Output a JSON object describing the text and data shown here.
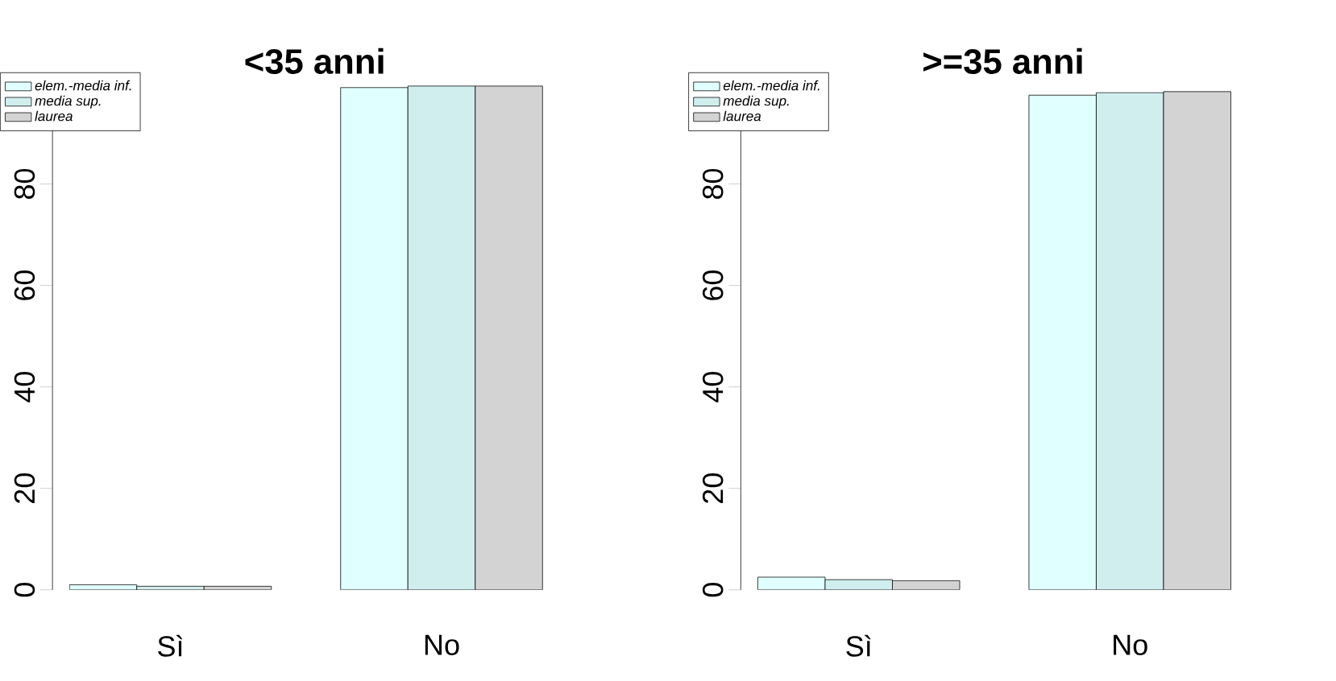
{
  "chart_data": [
    {
      "type": "bar",
      "title": "<35 anni",
      "categories": [
        "Sì",
        "No"
      ],
      "series": [
        {
          "name": "elem.-media inf.",
          "color": "#e0ffff",
          "values": [
            1.0,
            99.0
          ]
        },
        {
          "name": "media sup.",
          "color": "#d1eeee",
          "values": [
            0.7,
            99.3
          ]
        },
        {
          "name": "laurea",
          "color": "#d3d3d3",
          "values": [
            0.7,
            99.3
          ]
        }
      ],
      "ylim": [
        0,
        100
      ],
      "yticks": [
        0,
        20,
        40,
        60,
        80
      ],
      "legend": "top left"
    },
    {
      "type": "bar",
      "title": ">=35 anni",
      "categories": [
        "Sì",
        "No"
      ],
      "series": [
        {
          "name": "elem.-media inf.",
          "color": "#e0ffff",
          "values": [
            2.5,
            97.5
          ]
        },
        {
          "name": "media sup.",
          "color": "#d1eeee",
          "values": [
            2.0,
            98.0
          ]
        },
        {
          "name": "laurea",
          "color": "#d3d3d3",
          "values": [
            1.8,
            98.2
          ]
        }
      ],
      "ylim": [
        0,
        100
      ],
      "yticks": [
        0,
        20,
        40,
        60,
        80
      ],
      "legend": "top left"
    }
  ]
}
